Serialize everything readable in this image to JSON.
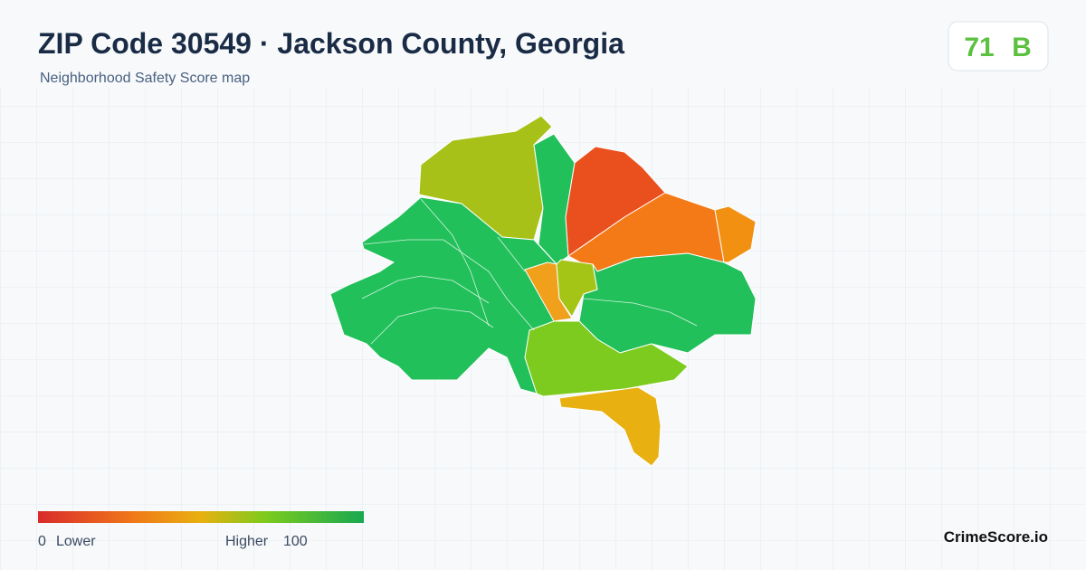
{
  "header": {
    "title": "ZIP Code 30549 · Jackson County, Georgia",
    "subtitle": "Neighborhood Safety Score map"
  },
  "score": {
    "value": 71,
    "grade": "B"
  },
  "legend": {
    "min": 0,
    "min_label": "Lower",
    "max_label": "Higher",
    "max": 100
  },
  "brand": "CrimeScore.io"
}
